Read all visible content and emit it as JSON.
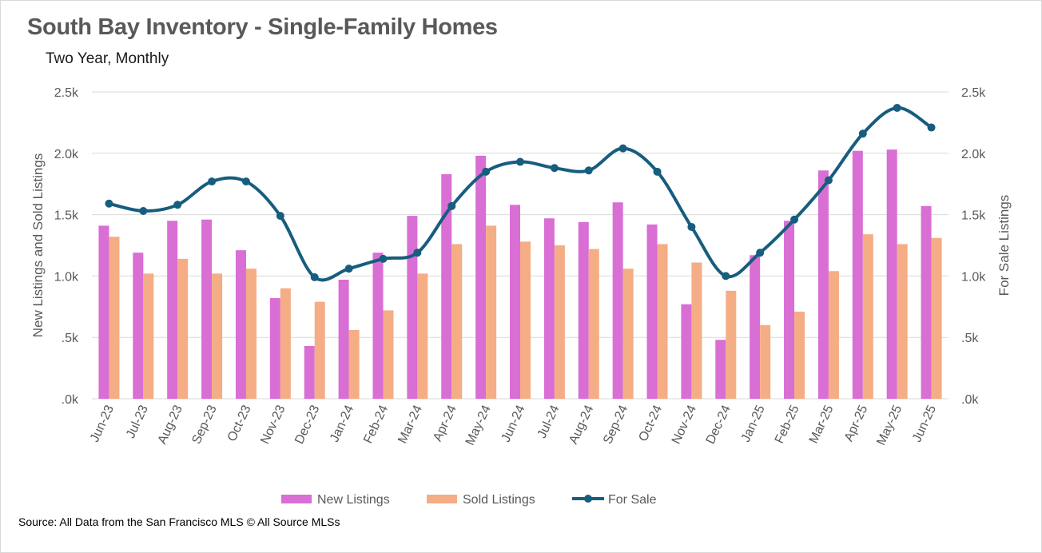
{
  "title": "South Bay Inventory - Single-Family Homes",
  "subtitle": "Two Year, Monthly",
  "source": "Source: All Data from the San Francisco MLS © All Source MLSs",
  "chart_data": {
    "type": "bar",
    "categories": [
      "Jun-23",
      "Jul-23",
      "Aug-23",
      "Sep-23",
      "Oct-23",
      "Nov-23",
      "Dec-23",
      "Jan-24",
      "Feb-24",
      "Mar-24",
      "Apr-24",
      "May-24",
      "Jun-24",
      "Jul-24",
      "Aug-24",
      "Sep-24",
      "Oct-24",
      "Nov-24",
      "Dec-24",
      "Jan-25",
      "Feb-25",
      "Mar-25",
      "Apr-25",
      "May-25",
      "Jun-25"
    ],
    "series": [
      {
        "name": "New Listings",
        "type": "bar",
        "axis": "left",
        "color": "#d96ed4",
        "values": [
          1410,
          1190,
          1450,
          1460,
          1210,
          820,
          430,
          970,
          1190,
          1490,
          1830,
          1980,
          1580,
          1470,
          1440,
          1600,
          1420,
          770,
          480,
          1170,
          1450,
          1860,
          2020,
          2030,
          1570
        ]
      },
      {
        "name": "Sold Listings",
        "type": "bar",
        "axis": "left",
        "color": "#f4ad85",
        "values": [
          1320,
          1020,
          1140,
          1020,
          1060,
          900,
          790,
          560,
          720,
          1020,
          1260,
          1410,
          1280,
          1250,
          1220,
          1060,
          1260,
          1110,
          880,
          600,
          710,
          1040,
          1340,
          1260,
          1310
        ]
      },
      {
        "name": "For Sale",
        "type": "line",
        "axis": "right",
        "color": "#175d7e",
        "values": [
          1590,
          1530,
          1580,
          1770,
          1770,
          1490,
          990,
          1060,
          1140,
          1190,
          1570,
          1850,
          1930,
          1880,
          1860,
          2040,
          1850,
          1400,
          1000,
          1190,
          1460,
          1780,
          2160,
          2370,
          2210
        ]
      }
    ],
    "ylabel": "New Listings and Sold Listings",
    "y2label": "For Sale Listings",
    "ylim": [
      0,
      2500
    ],
    "y2lim": [
      0,
      2500
    ],
    "yticks": [
      ".0k",
      ".5k",
      "1.0k",
      "1.5k",
      "2.0k",
      "2.5k"
    ],
    "legend_position": "bottom",
    "grid": "horizontal"
  }
}
